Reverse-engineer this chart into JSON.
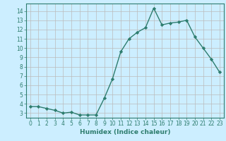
{
  "x": [
    0,
    1,
    2,
    3,
    4,
    5,
    6,
    7,
    8,
    9,
    10,
    11,
    12,
    13,
    14,
    15,
    16,
    17,
    18,
    19,
    20,
    21,
    22,
    23
  ],
  "y": [
    3.7,
    3.7,
    3.5,
    3.3,
    3.0,
    3.1,
    2.8,
    2.8,
    2.8,
    4.6,
    6.7,
    9.6,
    11.0,
    11.7,
    12.2,
    14.3,
    12.5,
    12.7,
    12.8,
    13.0,
    11.2,
    10.0,
    8.8,
    7.4
  ],
  "line_color": "#2e7d6e",
  "marker": "D",
  "marker_size": 2.2,
  "xlabel": "Humidex (Indice chaleur)",
  "yticks": [
    3,
    4,
    5,
    6,
    7,
    8,
    9,
    10,
    11,
    12,
    13,
    14
  ],
  "ylim": [
    2.5,
    14.8
  ],
  "xlim": [
    -0.5,
    23.5
  ],
  "bg_color": "#cceeff",
  "grid_color": "#bbbbbb",
  "tick_fontsize": 5.5,
  "xlabel_fontsize": 6.5,
  "linewidth": 1.0
}
